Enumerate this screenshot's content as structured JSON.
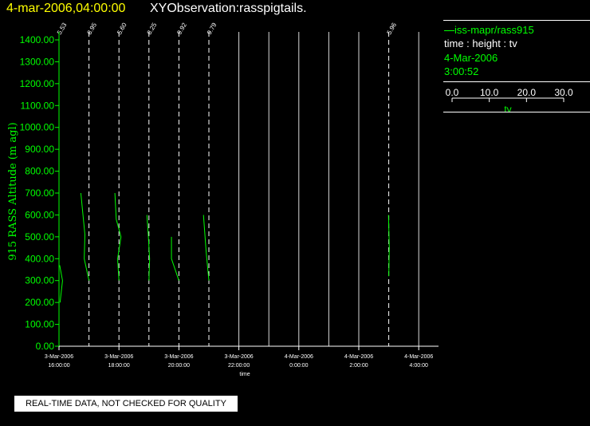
{
  "header": {
    "date": "4-mar-2006,04:00:00",
    "title": "XYObservation:rasspigtails."
  },
  "legend": {
    "series": "iss-mapr/rass915",
    "vars": "time : height : tv",
    "date": "4-Mar-2006",
    "time": "3:00:52",
    "scale_ticks": [
      "0.0",
      "10.0",
      "20.0",
      "30.0"
    ],
    "scale_label": "tv"
  },
  "disclaimer": "REAL-TIME DATA, NOT CHECKED FOR QUALITY",
  "colors": {
    "date": "#ffff00",
    "green": "#00ff00",
    "white": "#ffffff",
    "background": "#000000"
  },
  "chart_data": {
    "type": "line",
    "ylabel": "915 RASS Altitude (m agl)",
    "xlabel": "time",
    "ylim": [
      0,
      1400
    ],
    "y_ticks": [
      "0.00",
      "100.00",
      "200.00",
      "300.00",
      "400.00",
      "500.00",
      "600.00",
      "700.00",
      "800.00",
      "900.00",
      "1000.00",
      "1100.00",
      "1200.00",
      "1300.00",
      "1400.00"
    ],
    "x_ticks": [
      {
        "t": 16,
        "date": "3-Mar-2006",
        "time": "16:00:00"
      },
      {
        "t": 18,
        "date": "3-Mar-2006",
        "time": "18:00:00"
      },
      {
        "t": 20,
        "date": "3-Mar-2006",
        "time": "20:00:00"
      },
      {
        "t": 22,
        "date": "3-Mar-2006",
        "time": "22:00:00"
      },
      {
        "t": 24,
        "date": "4-Mar-2006",
        "time": "0:00:00"
      },
      {
        "t": 26,
        "date": "4-Mar-2006",
        "time": "2:00:00"
      },
      {
        "t": 28,
        "date": "4-Mar-2006",
        "time": "4:00:00"
      }
    ],
    "grid_lines_x": [
      16,
      17,
      18,
      19,
      20,
      21,
      22,
      23,
      24,
      25,
      26,
      27,
      28
    ],
    "profiles": [
      {
        "t": 16.0,
        "label": "5.53",
        "points": [
          [
            0.8,
            200
          ],
          [
            2.6,
            300
          ],
          [
            0.5,
            370
          ]
        ]
      },
      {
        "t": 17.0,
        "label": "8.95",
        "points": [
          [
            0,
            300
          ],
          [
            -3.5,
            400
          ],
          [
            -3.0,
            510
          ],
          [
            -6.0,
            700
          ]
        ]
      },
      {
        "t": 18.0,
        "label": "5.60",
        "points": [
          [
            0,
            300
          ],
          [
            -1.0,
            400
          ],
          [
            1.5,
            500
          ],
          [
            -2.0,
            580
          ],
          [
            -3.0,
            700
          ]
        ]
      },
      {
        "t": 19.0,
        "label": "8.25",
        "points": [
          [
            0,
            300
          ],
          [
            0.5,
            400
          ],
          [
            -0.5,
            510
          ],
          [
            -1.5,
            600
          ]
        ]
      },
      {
        "t": 20.0,
        "label": "9.92",
        "points": [
          [
            0,
            300
          ],
          [
            -5.5,
            400
          ],
          [
            -5.5,
            500
          ]
        ]
      },
      {
        "t": 21.0,
        "label": "9.79",
        "points": [
          [
            0,
            300
          ],
          [
            -2.0,
            430
          ],
          [
            -4.0,
            600
          ]
        ]
      },
      {
        "t": 27.0,
        "label": "5.96",
        "points": [
          [
            0,
            320
          ],
          [
            0.4,
            450
          ],
          [
            -0.2,
            600
          ]
        ]
      }
    ]
  }
}
